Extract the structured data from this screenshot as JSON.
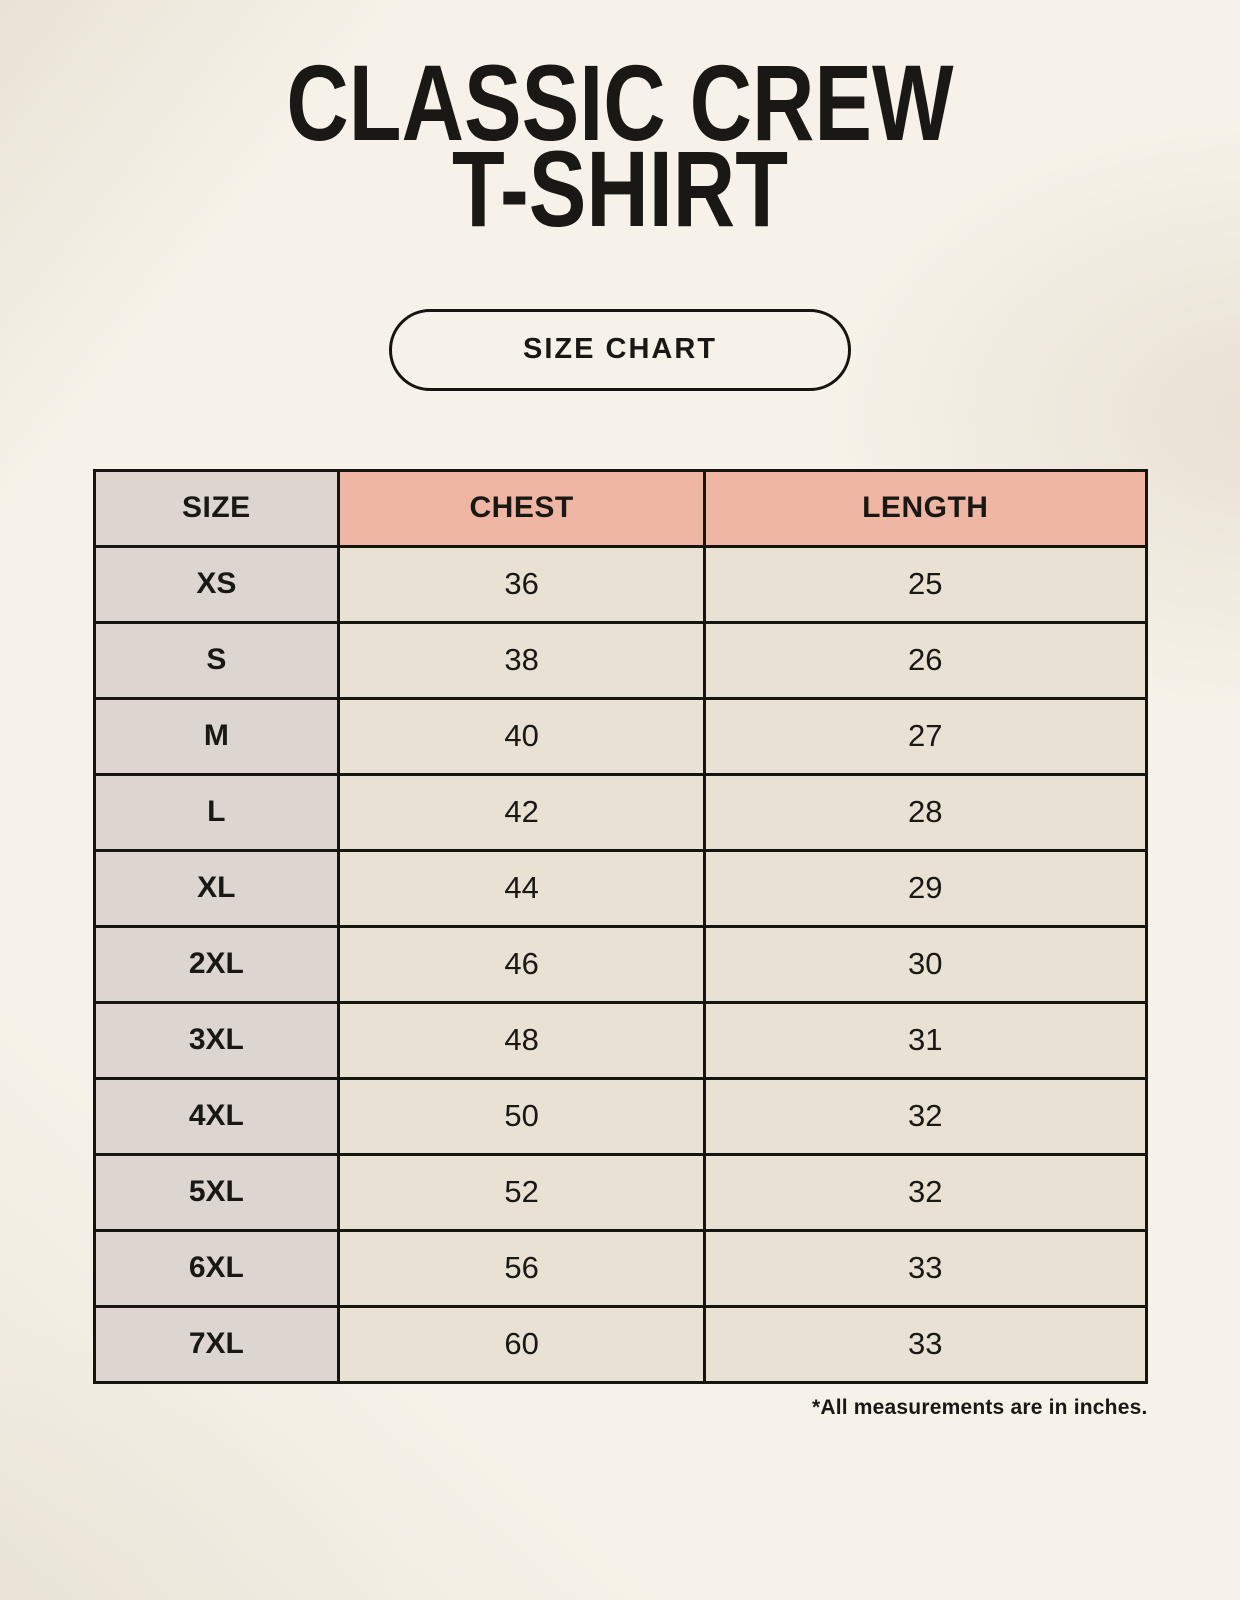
{
  "title": {
    "line1": "CLASSIC CREW",
    "line2": "T-SHIRT"
  },
  "badge": {
    "label": "SIZE CHART"
  },
  "table": {
    "columns": [
      "SIZE",
      "CHEST",
      "LENGTH"
    ],
    "rows": [
      {
        "size": "XS",
        "chest": "36",
        "length": "25"
      },
      {
        "size": "S",
        "chest": "38",
        "length": "26"
      },
      {
        "size": "M",
        "chest": "40",
        "length": "27"
      },
      {
        "size": "L",
        "chest": "42",
        "length": "28"
      },
      {
        "size": "XL",
        "chest": "44",
        "length": "29"
      },
      {
        "size": "2XL",
        "chest": "46",
        "length": "30"
      },
      {
        "size": "3XL",
        "chest": "48",
        "length": "31"
      },
      {
        "size": "4XL",
        "chest": "50",
        "length": "32"
      },
      {
        "size": "5XL",
        "chest": "52",
        "length": "32"
      },
      {
        "size": "6XL",
        "chest": "56",
        "length": "33"
      },
      {
        "size": "7XL",
        "chest": "60",
        "length": "33"
      }
    ]
  },
  "footnote": "*All measurements are in inches.",
  "colors": {
    "background": "#f6f2e9",
    "header_accent": "#f0b6a4",
    "size_column": "#ddd6d0",
    "data_cell": "#e9e1d4",
    "border": "#17140f",
    "text": "#1a1815"
  },
  "chart_data": {
    "type": "table",
    "title": "CLASSIC CREW T-SHIRT — SIZE CHART",
    "columns": [
      "SIZE",
      "CHEST",
      "LENGTH"
    ],
    "rows": [
      [
        "XS",
        36,
        25
      ],
      [
        "S",
        38,
        26
      ],
      [
        "M",
        40,
        27
      ],
      [
        "L",
        42,
        28
      ],
      [
        "XL",
        44,
        29
      ],
      [
        "2XL",
        46,
        30
      ],
      [
        "3XL",
        48,
        31
      ],
      [
        "4XL",
        50,
        32
      ],
      [
        "5XL",
        52,
        32
      ],
      [
        "6XL",
        56,
        33
      ],
      [
        "7XL",
        60,
        33
      ]
    ],
    "units": "inches",
    "notes": "*All measurements are in inches."
  }
}
